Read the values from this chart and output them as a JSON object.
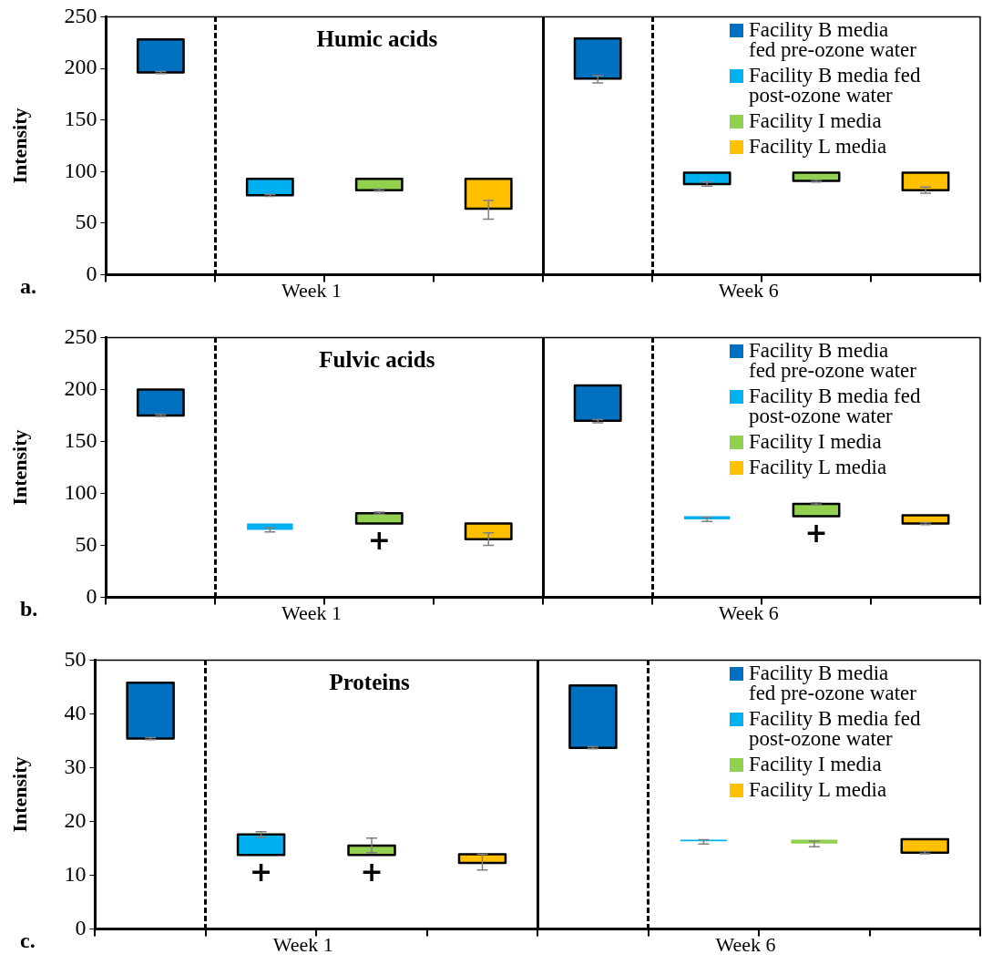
{
  "chart_data": [
    {
      "type": "bar",
      "title": "Humic acids",
      "ylabel": "Intensity",
      "categories": [
        null,
        null,
        null,
        null,
        null,
        null,
        null,
        null
      ],
      "ylim": [
        0,
        250
      ],
      "yticks": [
        0,
        50,
        100,
        150,
        200,
        250
      ],
      "legend": "top right",
      "series": [
        {
          "name": "Facility B media fed pre-ozone water",
          "color": "#0070c0",
          "base": [
            196,
            null,
            null,
            null,
            190,
            null,
            null,
            null
          ],
          "values": [
            32,
            null,
            null,
            null,
            39,
            null,
            null,
            null
          ],
          "errors": [
            [
              195,
              197
            ],
            null,
            null,
            null,
            [
              186,
              193
            ],
            null,
            null,
            null
          ]
        },
        {
          "name": "Facility B media fed post-ozone water",
          "color": "#00b0f0",
          "base": [
            null,
            77,
            null,
            null,
            null,
            88,
            null,
            null
          ],
          "values": [
            null,
            16,
            null,
            null,
            null,
            11,
            null,
            null
          ],
          "errors": [
            null,
            [
              76,
              78
            ],
            null,
            null,
            null,
            [
              86,
              90
            ],
            null,
            null
          ]
        },
        {
          "name": "Facility I media",
          "color": "#92d050",
          "base": [
            null,
            null,
            82,
            null,
            null,
            null,
            91,
            null
          ],
          "values": [
            null,
            null,
            11,
            null,
            null,
            null,
            8,
            null
          ],
          "errors": [
            null,
            null,
            [
              81,
              83
            ],
            null,
            null,
            null,
            [
              90,
              92
            ],
            null
          ]
        },
        {
          "name": "Facility L media",
          "color": "#ffc000",
          "base": [
            null,
            null,
            null,
            64,
            null,
            null,
            null,
            82
          ],
          "values": [
            null,
            null,
            null,
            29,
            null,
            null,
            null,
            17
          ],
          "errors": [
            null,
            null,
            null,
            [
              54,
              72
            ],
            null,
            null,
            null,
            [
              79,
              85
            ]
          ]
        }
      ],
      "annotations": [
        "a.",
        "Week 1",
        "Week 6"
      ]
    },
    {
      "type": "bar",
      "title": "Fulvic acids",
      "ylabel": "Intensity",
      "categories": [
        null,
        null,
        null,
        null,
        null,
        null,
        null,
        null
      ],
      "ylim": [
        0,
        250
      ],
      "yticks": [
        0,
        50,
        100,
        150,
        200,
        250
      ],
      "legend": "top right",
      "series": [
        {
          "name": "Facility B media fed pre-ozone water",
          "color": "#0070c0",
          "base": [
            175,
            null,
            null,
            null,
            170,
            null,
            null,
            null
          ],
          "values": [
            25,
            null,
            null,
            null,
            34,
            null,
            null,
            null
          ],
          "errors": [
            [
              174,
              176
            ],
            null,
            null,
            null,
            [
              168,
              171
            ],
            null,
            null,
            null
          ]
        },
        {
          "name": "Facility B media fed post-ozone water",
          "color": "#00b0f0",
          "base": [
            null,
            65,
            null,
            null,
            null,
            75,
            null,
            null
          ],
          "values": [
            null,
            6,
            null,
            null,
            null,
            3,
            null,
            null
          ],
          "errors": [
            null,
            [
              63,
              67
            ],
            null,
            null,
            null,
            [
              73,
              77
            ],
            null,
            null
          ]
        },
        {
          "name": "Facility I media",
          "color": "#92d050",
          "base": [
            null,
            null,
            71,
            null,
            null,
            null,
            78,
            null
          ],
          "values": [
            null,
            null,
            10,
            null,
            null,
            null,
            12,
            null
          ],
          "errors": [
            null,
            null,
            [
              80,
              82
            ],
            null,
            null,
            null,
            [
              89,
              91
            ],
            null
          ]
        },
        {
          "name": "Facility L media",
          "color": "#ffc000",
          "base": [
            null,
            null,
            null,
            56,
            null,
            null,
            null,
            71
          ],
          "values": [
            null,
            null,
            null,
            15,
            null,
            null,
            null,
            8
          ],
          "errors": [
            null,
            null,
            null,
            [
              50,
              62
            ],
            null,
            null,
            null,
            [
              70,
              72
            ]
          ]
        }
      ],
      "annotations": [
        "b.",
        "Week 1",
        "Week 6",
        "+",
        "+"
      ]
    },
    {
      "type": "bar",
      "title": "Proteins",
      "ylabel": "Intensity",
      "categories": [
        null,
        null,
        null,
        null,
        null,
        null,
        null,
        null
      ],
      "ylim": [
        0,
        50
      ],
      "yticks": [
        0,
        10,
        20,
        30,
        40,
        50
      ],
      "legend": "top right",
      "series": [
        {
          "name": "Facility B media fed pre-ozone water",
          "color": "#0070c0",
          "base": [
            35.4,
            null,
            null,
            null,
            33.7,
            null,
            null,
            null
          ],
          "values": [
            10.4,
            null,
            null,
            null,
            11.6,
            null,
            null,
            null
          ],
          "errors": [
            [
              35.2,
              35.6
            ],
            null,
            null,
            null,
            [
              33.5,
              33.9
            ],
            null,
            null,
            null
          ]
        },
        {
          "name": "Facility B media fed post-ozone water",
          "color": "#00b0f0",
          "base": [
            null,
            13.8,
            null,
            null,
            null,
            16.3,
            null,
            null
          ],
          "values": [
            null,
            3.8,
            null,
            null,
            null,
            0.3,
            null,
            null
          ],
          "errors": [
            null,
            [
              17.1,
              18.1
            ],
            null,
            null,
            null,
            [
              15.8,
              16.6
            ],
            null,
            null
          ]
        },
        {
          "name": "Facility I media",
          "color": "#92d050",
          "base": [
            null,
            null,
            13.8,
            null,
            null,
            null,
            15.9,
            null
          ],
          "values": [
            null,
            null,
            1.7,
            null,
            null,
            null,
            0.7,
            null
          ],
          "errors": [
            null,
            null,
            [
              14.2,
              16.9
            ],
            null,
            null,
            null,
            [
              15.3,
              16.3
            ],
            null
          ]
        },
        {
          "name": "Facility L media",
          "color": "#ffc000",
          "base": [
            null,
            null,
            null,
            12.3,
            null,
            null,
            null,
            14.2
          ],
          "values": [
            null,
            null,
            null,
            1.6,
            null,
            null,
            null,
            2.5
          ],
          "errors": [
            null,
            null,
            null,
            [
              11.0,
              13.9
            ],
            null,
            null,
            null,
            [
              14.0,
              14.4
            ]
          ]
        }
      ],
      "annotations": [
        "c.",
        "Week 1",
        "Week 6",
        "+",
        "+"
      ]
    }
  ]
}
